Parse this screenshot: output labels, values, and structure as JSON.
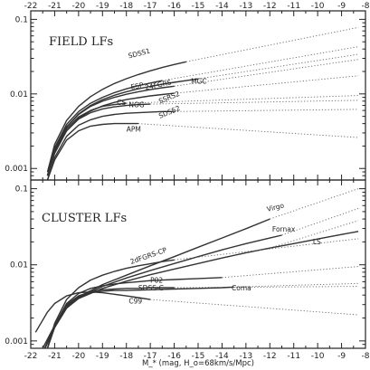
{
  "chart_data": [
    {
      "type": "line",
      "title": "FIELD LFs",
      "yscale": "log",
      "xlim": [
        -22,
        -8
      ],
      "ylim": [
        0.0007,
        0.13
      ],
      "xticks": [
        -22,
        -21,
        -20,
        -19,
        -18,
        -17,
        -16,
        -15,
        -14,
        -13,
        -12,
        -11,
        -10,
        -9,
        -8
      ],
      "yticks": [
        {
          "value": 0.001,
          "label": "0.001"
        },
        {
          "value": 0.01,
          "label": "0.01"
        },
        {
          "value": 0.1,
          "label": "0.1"
        }
      ],
      "series": [
        {
          "name": "SDSS1",
          "solid": {
            "x": [
              -21.3,
              -21.0,
              -20.5,
              -20.0,
              -19.5,
              -19.0,
              -18.5,
              -18.0,
              -17.5,
              -17.0,
              -16.5,
              -16.0,
              -15.5
            ],
            "y": [
              0.0009,
              0.0021,
              0.0044,
              0.0068,
              0.0092,
              0.0115,
              0.0138,
              0.016,
              0.0182,
              0.0204,
              0.0226,
              0.0248,
              0.027
            ]
          },
          "dotted": {
            "x": [
              -15.5,
              -8.3
            ],
            "y": [
              0.027,
              0.078
            ]
          }
        },
        {
          "name": "ESP",
          "solid": {
            "x": [
              -21.3,
              -21.0,
              -20.5,
              -20.0,
              -19.5,
              -19.0,
              -18.5,
              -18.0,
              -17.5,
              -17.0,
              -16.5
            ],
            "y": [
              0.0008,
              0.0019,
              0.0039,
              0.0058,
              0.0075,
              0.009,
              0.0104,
              0.0117,
              0.0129,
              0.014,
              0.0151
            ]
          },
          "dotted": {
            "x": [
              -16.5,
              -8.3
            ],
            "y": [
              0.0151,
              0.043
            ]
          }
        },
        {
          "name": "24FGRS",
          "solid": {
            "x": [
              -21.3,
              -21.0,
              -20.5,
              -20.0,
              -19.5,
              -19.0,
              -18.5,
              -18.0,
              -17.5,
              -17.0,
              -16.5,
              -16.0
            ],
            "y": [
              0.0008,
              0.0018,
              0.0036,
              0.0053,
              0.0068,
              0.008,
              0.009,
              0.0099,
              0.0107,
              0.0114,
              0.0121,
              0.0127
            ]
          },
          "dotted": {
            "x": [
              -16.0,
              -8.3
            ],
            "y": [
              0.0127,
              0.029
            ]
          }
        },
        {
          "name": "MGC",
          "solid": {
            "x": [
              -21.3,
              -21.0,
              -20.5,
              -20.0,
              -19.5,
              -19.0,
              -18.5,
              -18.0,
              -17.5,
              -17.0,
              -16.5,
              -16.0,
              -15.5,
              -15.0
            ],
            "y": [
              0.0008,
              0.0018,
              0.0036,
              0.0054,
              0.007,
              0.0084,
              0.0096,
              0.0107,
              0.0117,
              0.0126,
              0.0135,
              0.0143,
              0.0151,
              0.0159
            ]
          },
          "dotted": {
            "x": [
              -15.0,
              -8.3
            ],
            "y": [
              0.0159,
              0.034
            ]
          }
        },
        {
          "name": "CS",
          "solid": {
            "x": [
              -21.3,
              -21.0,
              -20.5,
              -20.0,
              -19.5,
              -19.0,
              -18.5,
              -18.0
            ],
            "y": [
              0.0008,
              0.0017,
              0.0034,
              0.0049,
              0.006,
              0.0068,
              0.0072,
              0.0075
            ]
          },
          "dotted": {
            "x": [
              -18.0,
              -8.3
            ],
            "y": [
              0.0075,
              0.0095
            ]
          }
        },
        {
          "name": "NOG",
          "solid": {
            "x": [
              -21.3,
              -21.0,
              -20.5,
              -20.0,
              -19.5,
              -19.0,
              -18.5,
              -18.0,
              -17.5,
              -17.0
            ],
            "y": [
              0.0008,
              0.0016,
              0.0032,
              0.0046,
              0.0056,
              0.0063,
              0.0067,
              0.007,
              0.0072,
              0.0073
            ]
          },
          "dotted": {
            "x": [
              -17.0,
              -8.3
            ],
            "y": [
              0.0073,
              0.0082
            ]
          }
        },
        {
          "name": "SSRS2",
          "solid": {
            "x": [
              -21.3,
              -21.0,
              -20.5,
              -20.0,
              -19.5,
              -19.0,
              -18.5,
              -18.0,
              -17.5,
              -17.0,
              -16.5,
              -16.0
            ],
            "y": [
              0.0008,
              0.0016,
              0.0032,
              0.0047,
              0.0059,
              0.0069,
              0.0077,
              0.0084,
              0.0089,
              0.0094,
              0.0098,
              0.0102
            ]
          },
          "dotted": {
            "x": [
              -16.0,
              -8.3
            ],
            "y": [
              0.0102,
              0.0175
            ]
          }
        },
        {
          "name": "SDSS2",
          "solid": {
            "x": [
              -21.3,
              -21.0,
              -20.5,
              -20.0,
              -19.5,
              -19.0,
              -18.5,
              -18.0,
              -17.5,
              -17.0,
              -16.5,
              -16.0
            ],
            "y": [
              0.0007,
              0.0014,
              0.0027,
              0.0038,
              0.0045,
              0.005,
              0.0053,
              0.0055,
              0.0056,
              0.0057,
              0.0058,
              0.0058
            ]
          },
          "dotted": {
            "x": [
              -16.0,
              -8.3
            ],
            "y": [
              0.0058,
              0.0062
            ]
          }
        },
        {
          "name": "APM",
          "solid": {
            "x": [
              -21.3,
              -21.0,
              -20.5,
              -20.0,
              -19.5,
              -19.0,
              -18.5,
              -18.0,
              -17.5
            ],
            "y": [
              0.0007,
              0.0013,
              0.0024,
              0.0032,
              0.0037,
              0.0039,
              0.004,
              0.004,
              0.004
            ]
          },
          "dotted": {
            "x": [
              -17.5,
              -8.3
            ],
            "y": [
              0.004,
              0.0026
            ]
          }
        }
      ],
      "labels": [
        {
          "text": "SDSS1",
          "x": -17.9,
          "y": 0.03,
          "rotate": -14
        },
        {
          "text": "ESP",
          "x": -17.8,
          "y": 0.0115,
          "rotate": -10
        },
        {
          "text": "24FGRS",
          "x": -17.2,
          "y": 0.0113,
          "rotate": -12
        },
        {
          "text": "MGC",
          "x": -15.3,
          "y": 0.0137,
          "rotate": 0
        },
        {
          "text": "CS",
          "x": -18.4,
          "y": 0.0071,
          "rotate": 0
        },
        {
          "text": "NOG",
          "x": -17.9,
          "y": 0.0066,
          "rotate": 0
        },
        {
          "text": "SSRS2",
          "x": -16.6,
          "y": 0.0074,
          "rotate": -22
        },
        {
          "text": "SDSS2",
          "x": -16.6,
          "y": 0.0047,
          "rotate": -22
        },
        {
          "text": "APM",
          "x": -18.0,
          "y": 0.0031,
          "rotate": 0
        }
      ]
    },
    {
      "type": "line",
      "title": "CLUSTER LFs",
      "yscale": "log",
      "xlim": [
        -22,
        -8
      ],
      "ylim": [
        0.0008,
        0.13
      ],
      "xlabel": "M_* (mag, H_o=68km/s/Mpc)",
      "xticks": [
        -22,
        -21,
        -20,
        -19,
        -18,
        -17,
        -16,
        -15,
        -14,
        -13,
        -12,
        -11,
        -10,
        -9,
        -8
      ],
      "yticks": [
        {
          "value": 0.001,
          "label": "0.001"
        },
        {
          "value": 0.01,
          "label": "0.01"
        },
        {
          "value": 0.1,
          "label": "0.1"
        }
      ],
      "series": [
        {
          "name": "Virgo",
          "solid": {
            "x": [
              -21.5,
              -21.0,
              -20.5,
              -20.0,
              -19.0,
              -18.0,
              -17.0,
              -16.0,
              -15.0,
              -14.0,
              -13.0,
              -12.0
            ],
            "y": [
              0.0007,
              0.0016,
              0.0028,
              0.0038,
              0.0055,
              0.0073,
              0.0097,
              0.0128,
              0.017,
              0.0225,
              0.0298,
              0.04
            ]
          },
          "dotted": {
            "x": [
              -12.0,
              -8.3
            ],
            "y": [
              0.04,
              0.1
            ]
          }
        },
        {
          "name": "Fornax",
          "solid": {
            "x": [
              -21.5,
              -21.0,
              -20.5,
              -20.0,
              -19.0,
              -18.0,
              -17.0,
              -16.0,
              -15.0,
              -14.0,
              -13.0,
              -12.0,
              -11.5
            ],
            "y": [
              0.0007,
              0.0015,
              0.0027,
              0.0037,
              0.0052,
              0.0067,
              0.0084,
              0.0104,
              0.0128,
              0.0157,
              0.019,
              0.0225,
              0.0245
            ]
          },
          "dotted": {
            "x": [
              -11.5,
              -8.3
            ],
            "y": [
              0.0245,
              0.055
            ]
          }
        },
        {
          "name": "LS",
          "solid": {
            "x": [
              -21.4,
              -21.0,
              -20.5,
              -20.0,
              -19.0,
              -18.0,
              -17.0,
              -16.0,
              -15.0,
              -14.0,
              -13.0,
              -12.0,
              -11.0,
              -10.0,
              -9.0,
              -8.3
            ],
            "y": [
              0.0008,
              0.0015,
              0.0027,
              0.0036,
              0.0049,
              0.0061,
              0.0074,
              0.0088,
              0.0104,
              0.0123,
              0.0144,
              0.0166,
              0.019,
              0.0218,
              0.025,
              0.0275
            ]
          },
          "dotted": {
            "x": [
              -12.0,
              -8.3
            ],
            "y": [
              0.0166,
              0.038
            ]
          }
        },
        {
          "name": "2dFGRS-CP",
          "solid": {
            "x": [
              -21.3,
              -21.0,
              -20.5,
              -20.0,
              -19.5,
              -19.0,
              -18.5,
              -18.0,
              -17.5,
              -17.0,
              -16.5,
              -16.0
            ],
            "y": [
              0.0008,
              0.0017,
              0.0035,
              0.005,
              0.0063,
              0.0073,
              0.0082,
              0.009,
              0.0097,
              0.0103,
              0.011,
              0.0116
            ]
          },
          "dotted": {
            "x": [
              -16.0,
              -8.3
            ],
            "y": [
              0.0116,
              0.022
            ]
          }
        },
        {
          "name": "P02",
          "solid": {
            "x": [
              -21.3,
              -21.0,
              -20.5,
              -20.0,
              -19.5,
              -19.0,
              -18.5,
              -18.0,
              -17.5,
              -17.0,
              -16.5,
              -16.0,
              -15.0,
              -14.0
            ],
            "y": [
              0.0008,
              0.0016,
              0.0031,
              0.0042,
              0.0049,
              0.0053,
              0.0056,
              0.0058,
              0.006,
              0.0062,
              0.0063,
              0.0064,
              0.0066,
              0.0068
            ]
          },
          "dotted": {
            "x": [
              -14.0,
              -8.3
            ],
            "y": [
              0.0068,
              0.0095
            ]
          }
        },
        {
          "name": "SDSS-C",
          "solid": {
            "x": [
              -21.3,
              -21.0,
              -20.5,
              -20.0,
              -19.5,
              -19.0,
              -18.5,
              -18.0,
              -17.5,
              -17.0,
              -16.5,
              -16.0
            ],
            "y": [
              0.0008,
              0.0015,
              0.003,
              0.0039,
              0.0044,
              0.0047,
              0.0048,
              0.0049,
              0.0049,
              0.005,
              0.005,
              0.005
            ]
          },
          "dotted": {
            "x": [
              -16.0,
              -8.3
            ],
            "y": [
              0.005,
              0.0052
            ]
          }
        },
        {
          "name": "Coma",
          "solid": {
            "x": [
              -21.5,
              -21.0,
              -20.5,
              -20.0,
              -19.5,
              -19.0,
              -18.5,
              -18.0,
              -17.0,
              -16.0,
              -15.0,
              -14.0,
              -13.5
            ],
            "y": [
              0.0008,
              0.0016,
              0.0029,
              0.0038,
              0.0043,
              0.0045,
              0.0046,
              0.0046,
              0.0047,
              0.0048,
              0.0049,
              0.005,
              0.0051
            ]
          },
          "dotted": {
            "x": [
              -13.5,
              -8.3
            ],
            "y": [
              0.0051,
              0.0057
            ]
          }
        },
        {
          "name": "C99",
          "solid": {
            "x": [
              -21.8,
              -21.3,
              -21.0,
              -20.5,
              -20.0,
              -19.5,
              -19.0,
              -18.5,
              -18.0,
              -17.5,
              -17.0
            ],
            "y": [
              0.0013,
              0.0024,
              0.0031,
              0.0039,
              0.0043,
              0.0044,
              0.0043,
              0.0041,
              0.0039,
              0.0037,
              0.0035
            ]
          },
          "dotted": {
            "x": [
              -17.0,
              -8.3
            ],
            "y": [
              0.0035,
              0.0022
            ]
          }
        }
      ],
      "labels": [
        {
          "text": "Virgo",
          "x": -12.1,
          "y": 0.05,
          "rotate": -14
        },
        {
          "text": "Fornax",
          "x": -11.9,
          "y": 0.0275,
          "rotate": 0
        },
        {
          "text": "LS",
          "x": -10.2,
          "y": 0.0185,
          "rotate": 0
        },
        {
          "text": "2dFGRS-CP",
          "x": -17.8,
          "y": 0.0102,
          "rotate": -19
        },
        {
          "text": "P02",
          "x": -17.0,
          "y": 0.0058,
          "rotate": 0
        },
        {
          "text": "SDSS-C",
          "x": -17.5,
          "y": 0.0046,
          "rotate": 0
        },
        {
          "text": "Coma",
          "x": -13.6,
          "y": 0.0046,
          "rotate": 0
        },
        {
          "text": "C99",
          "x": -17.9,
          "y": 0.0031,
          "rotate": 0
        }
      ]
    }
  ]
}
